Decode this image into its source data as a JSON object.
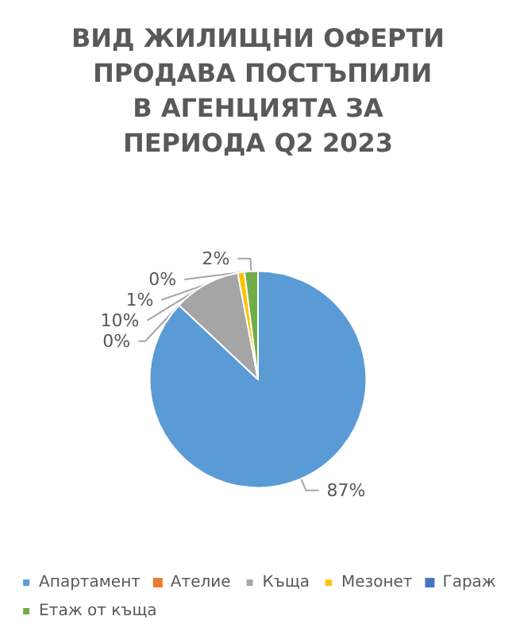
{
  "chart_data": {
    "type": "pie",
    "title": "ВИД ЖИЛИЩНИ ОФЕРТИ ПРОДАВА ПОСТЪПИЛИ В АГЕНЦИЯТА ЗА ПЕРИОДА Q2 2023",
    "categories": [
      "Апартамент",
      "Ателие",
      "Къща",
      "Мезонет",
      "Гараж",
      "Етаж от къща"
    ],
    "values": [
      87,
      0,
      10,
      1,
      0,
      2
    ],
    "value_labels": [
      "87%",
      "0%",
      "10%",
      "1%",
      "0%",
      "2%"
    ],
    "colors": [
      "#5b9bd5",
      "#ed7d31",
      "#a5a5a5",
      "#ffc000",
      "#4472c4",
      "#70ad47"
    ],
    "legend": "bottom"
  }
}
